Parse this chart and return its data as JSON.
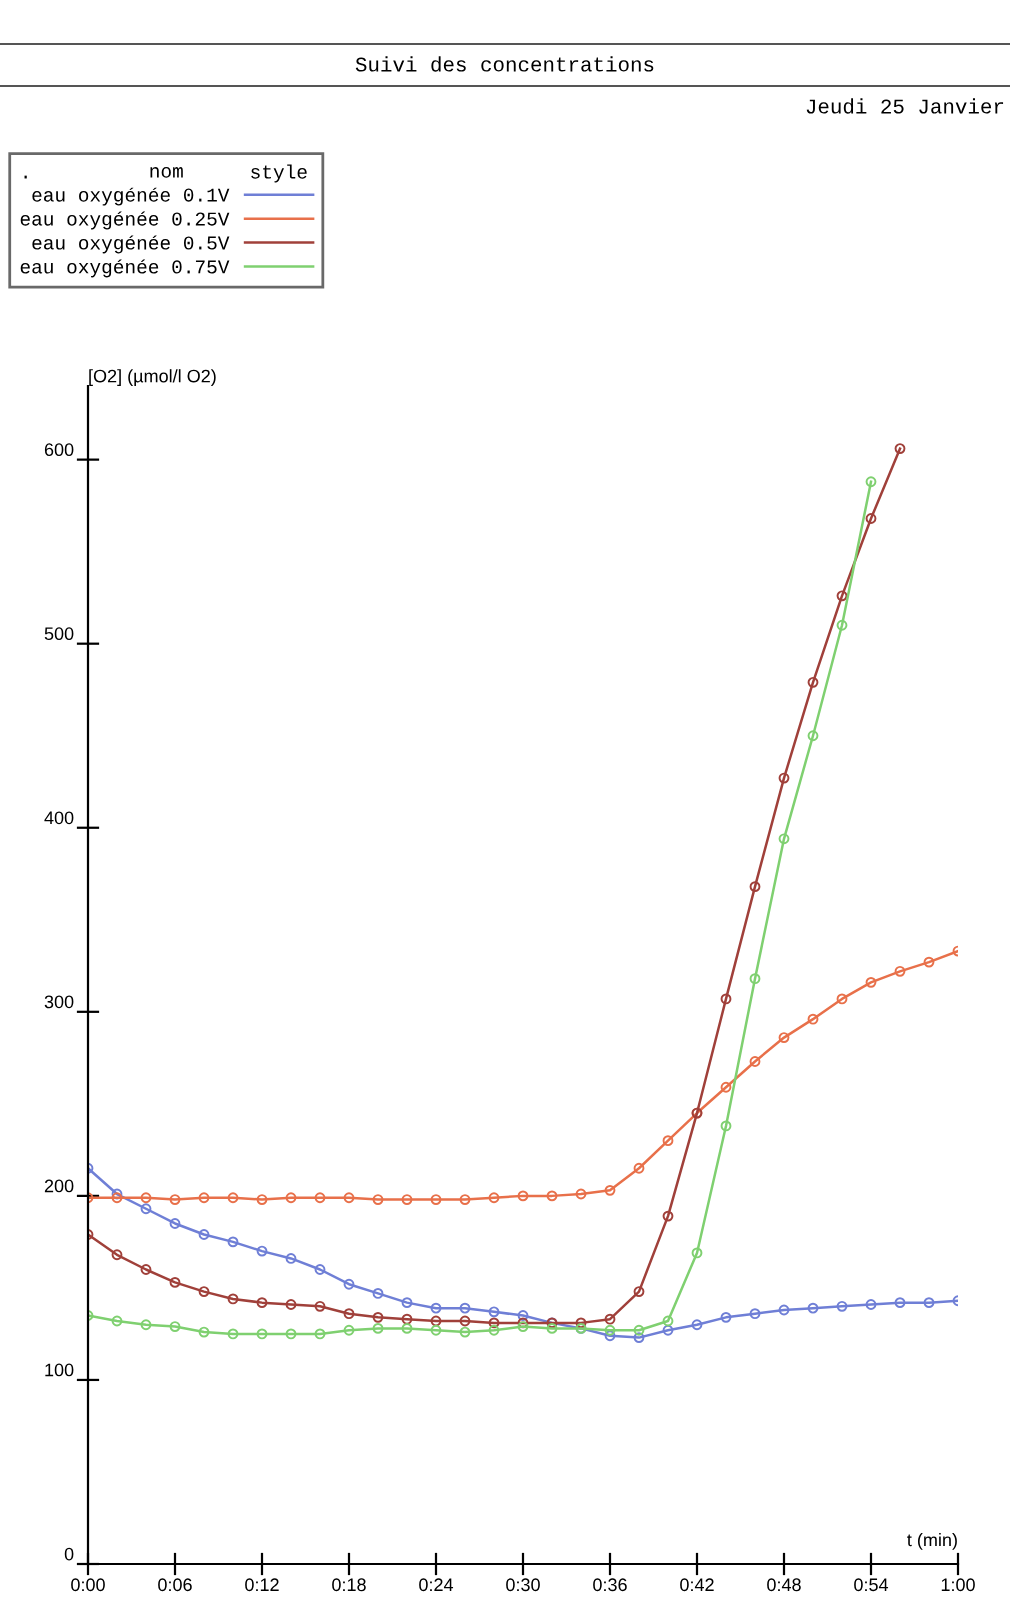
{
  "chart_data": {
    "type": "line",
    "title": "Suivi des concentrations",
    "subtitle": "Jeudi 25 Janvier",
    "xlabel": "t (min)",
    "ylabel": "[O2] (µmol/l O2)",
    "legend_title": "nom",
    "annotations": [
      "style",
      "."
    ],
    "x": [
      0,
      2,
      4,
      6,
      8,
      10,
      12,
      14,
      16,
      18,
      20,
      22,
      24,
      26,
      28,
      30,
      32,
      34,
      36,
      38,
      40,
      42,
      44,
      46,
      48,
      50,
      52,
      54,
      56,
      58,
      60
    ],
    "series": [
      {
        "name": "eau oxygénée 0.1V",
        "color": "#6f7fd6",
        "values": [
          215,
          201,
          193,
          185,
          179,
          175,
          170,
          166,
          160,
          152,
          147,
          142,
          139,
          139,
          137,
          135,
          131,
          128,
          124,
          123,
          127,
          130,
          134,
          136,
          138,
          139,
          140,
          141,
          142,
          142,
          143
        ]
      },
      {
        "name": "eau oxygénée 0.25V",
        "color": "#e8704a",
        "values": [
          199,
          199,
          199,
          198,
          199,
          199,
          198,
          199,
          199,
          199,
          198,
          198,
          198,
          198,
          199,
          200,
          200,
          201,
          203,
          215,
          230,
          245,
          259,
          273,
          286,
          296,
          307,
          316,
          322,
          327,
          333
        ]
      },
      {
        "name": "eau oxygénée 0.5V",
        "color": "#a0403a",
        "values": [
          179,
          168,
          160,
          153,
          148,
          144,
          142,
          141,
          140,
          136,
          134,
          133,
          132,
          132,
          131,
          131,
          131,
          131,
          133,
          148,
          189,
          245,
          307,
          368,
          427,
          479,
          526,
          568,
          606,
          null,
          null
        ]
      },
      {
        "name": "eau oxygénée 0.75V",
        "color": "#7fd070",
        "values": [
          135,
          132,
          130,
          129,
          126,
          125,
          125,
          125,
          125,
          127,
          128,
          128,
          127,
          126,
          127,
          129,
          128,
          128,
          127,
          127,
          132,
          169,
          238,
          318,
          394,
          450,
          510,
          588,
          null,
          null,
          null
        ]
      }
    ],
    "xlim": [
      0,
      60
    ],
    "xticks": [
      {
        "value": 0,
        "label": "0:00"
      },
      {
        "value": 6,
        "label": "0:06"
      },
      {
        "value": 12,
        "label": "0:12"
      },
      {
        "value": 18,
        "label": "0:18"
      },
      {
        "value": 24,
        "label": "0:24"
      },
      {
        "value": 30,
        "label": "0:30"
      },
      {
        "value": 36,
        "label": "0:36"
      },
      {
        "value": 42,
        "label": "0:42"
      },
      {
        "value": 48,
        "label": "0:48"
      },
      {
        "value": 54,
        "label": "0:54"
      },
      {
        "value": 60,
        "label": "1:00"
      }
    ],
    "ylim": [
      0,
      640
    ],
    "yticks": [
      0,
      100,
      200,
      300,
      400,
      500,
      600
    ],
    "marker": "circle",
    "line_style": "solid",
    "grid": false,
    "legend": "top left"
  }
}
